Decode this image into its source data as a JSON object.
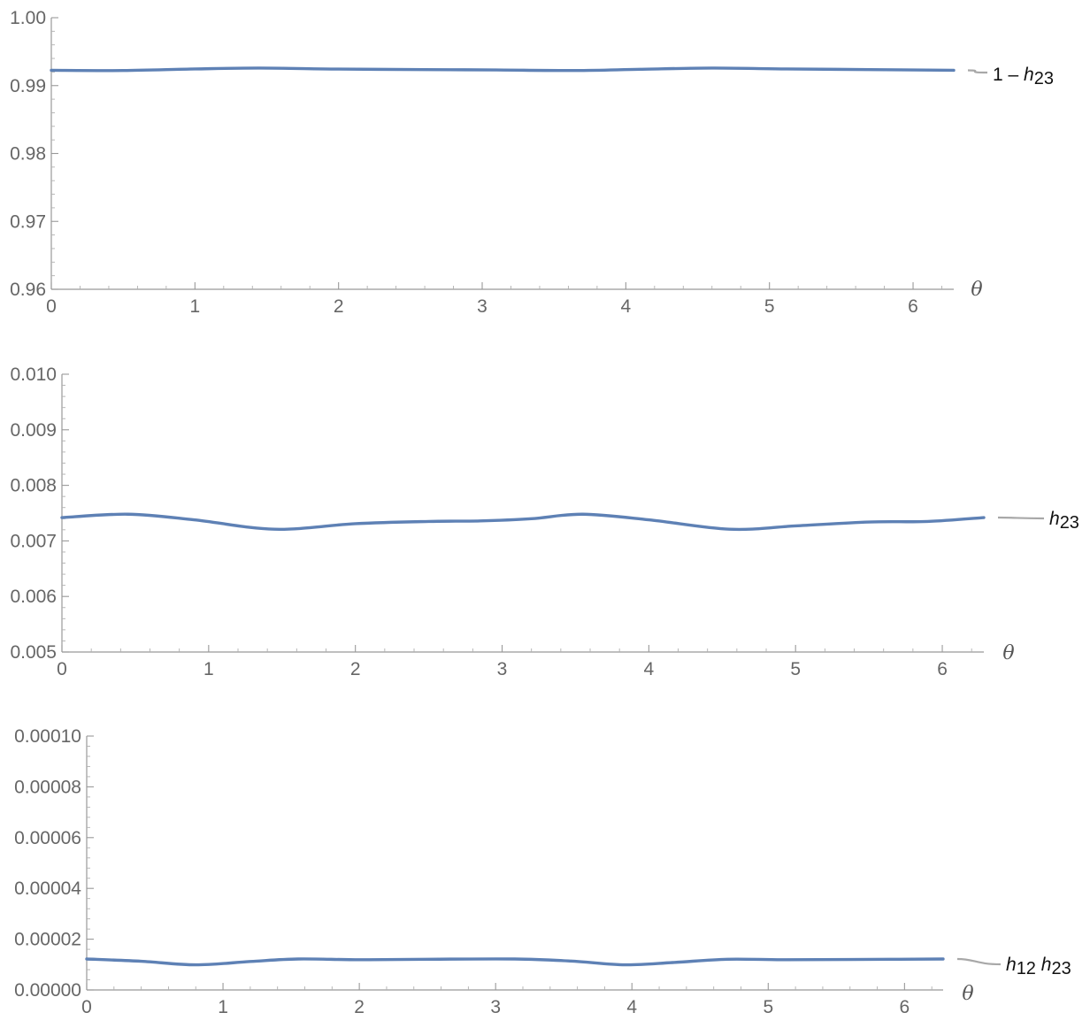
{
  "chart_data": [
    {
      "type": "line",
      "title": "",
      "xlabel": "θ",
      "ylabel": "",
      "xlim": [
        0,
        6.2832
      ],
      "ylim": [
        0.96,
        1.0
      ],
      "x_ticks": [
        "0",
        "1",
        "2",
        "3",
        "4",
        "5",
        "6"
      ],
      "y_ticks": [
        "0.96",
        "0.97",
        "0.98",
        "0.99",
        "1.00"
      ],
      "series": [
        {
          "label_parts": [
            {
              "text": "1 – ",
              "italic": false
            },
            {
              "text": "h",
              "italic": true
            },
            {
              "text": "23",
              "italic": false,
              "sub": true
            }
          ],
          "color": "#5e81b5",
          "x": [
            0,
            0.5,
            1.0,
            1.45,
            2.0,
            2.6,
            3.1,
            3.65,
            4.1,
            4.6,
            5.1,
            5.7,
            6.2832
          ],
          "values": [
            0.99225,
            0.99222,
            0.99245,
            0.99258,
            0.99243,
            0.99236,
            0.9923,
            0.99222,
            0.9924,
            0.99258,
            0.99245,
            0.99236,
            0.99225
          ]
        }
      ]
    },
    {
      "type": "line",
      "title": "",
      "xlabel": "θ",
      "ylabel": "",
      "xlim": [
        0,
        6.2832
      ],
      "ylim": [
        0.005,
        0.01
      ],
      "x_ticks": [
        "0",
        "1",
        "2",
        "3",
        "4",
        "5",
        "6"
      ],
      "y_ticks": [
        "0.005",
        "0.006",
        "0.007",
        "0.008",
        "0.009",
        "0.010"
      ],
      "series": [
        {
          "label_parts": [
            {
              "text": "h",
              "italic": true
            },
            {
              "text": "23",
              "italic": false,
              "sub": true
            }
          ],
          "color": "#5e81b5",
          "x": [
            0,
            0.45,
            0.9,
            1.45,
            2.0,
            2.5,
            2.85,
            3.2,
            3.55,
            4.0,
            4.55,
            5.0,
            5.5,
            5.9,
            6.2832
          ],
          "values": [
            0.00742,
            0.00748,
            0.00738,
            0.00721,
            0.00731,
            0.00735,
            0.00736,
            0.0074,
            0.00748,
            0.00738,
            0.00721,
            0.00727,
            0.00734,
            0.00735,
            0.00742
          ]
        }
      ]
    },
    {
      "type": "line",
      "title": "",
      "xlabel": "θ",
      "ylabel": "",
      "xlim": [
        0,
        6.2832
      ],
      "ylim": [
        0,
        0.0001
      ],
      "x_ticks": [
        "0",
        "1",
        "2",
        "3",
        "4",
        "5",
        "6"
      ],
      "y_ticks": [
        "0.00000",
        "0.00002",
        "0.00004",
        "0.00006",
        "0.00008",
        "0.00010"
      ],
      "series": [
        {
          "label_parts": [
            {
              "text": "h",
              "italic": true
            },
            {
              "text": "12",
              "italic": false,
              "sub": true
            },
            {
              "text": " ",
              "italic": false
            },
            {
              "text": "h",
              "italic": true
            },
            {
              "text": "23",
              "italic": false,
              "sub": true
            }
          ],
          "color": "#5e81b5",
          "x": [
            0,
            0.4,
            0.8,
            1.2,
            1.55,
            2.0,
            2.5,
            3.14,
            3.55,
            3.95,
            4.3,
            4.7,
            5.1,
            5.6,
            6.2832
          ],
          "values": [
            1.22e-05,
            1.13e-05,
            9.9e-06,
            1.12e-05,
            1.22e-05,
            1.19e-05,
            1.21e-05,
            1.22e-05,
            1.14e-05,
            9.9e-06,
            1.08e-05,
            1.21e-05,
            1.19e-05,
            1.2e-05,
            1.22e-05
          ]
        }
      ]
    }
  ]
}
